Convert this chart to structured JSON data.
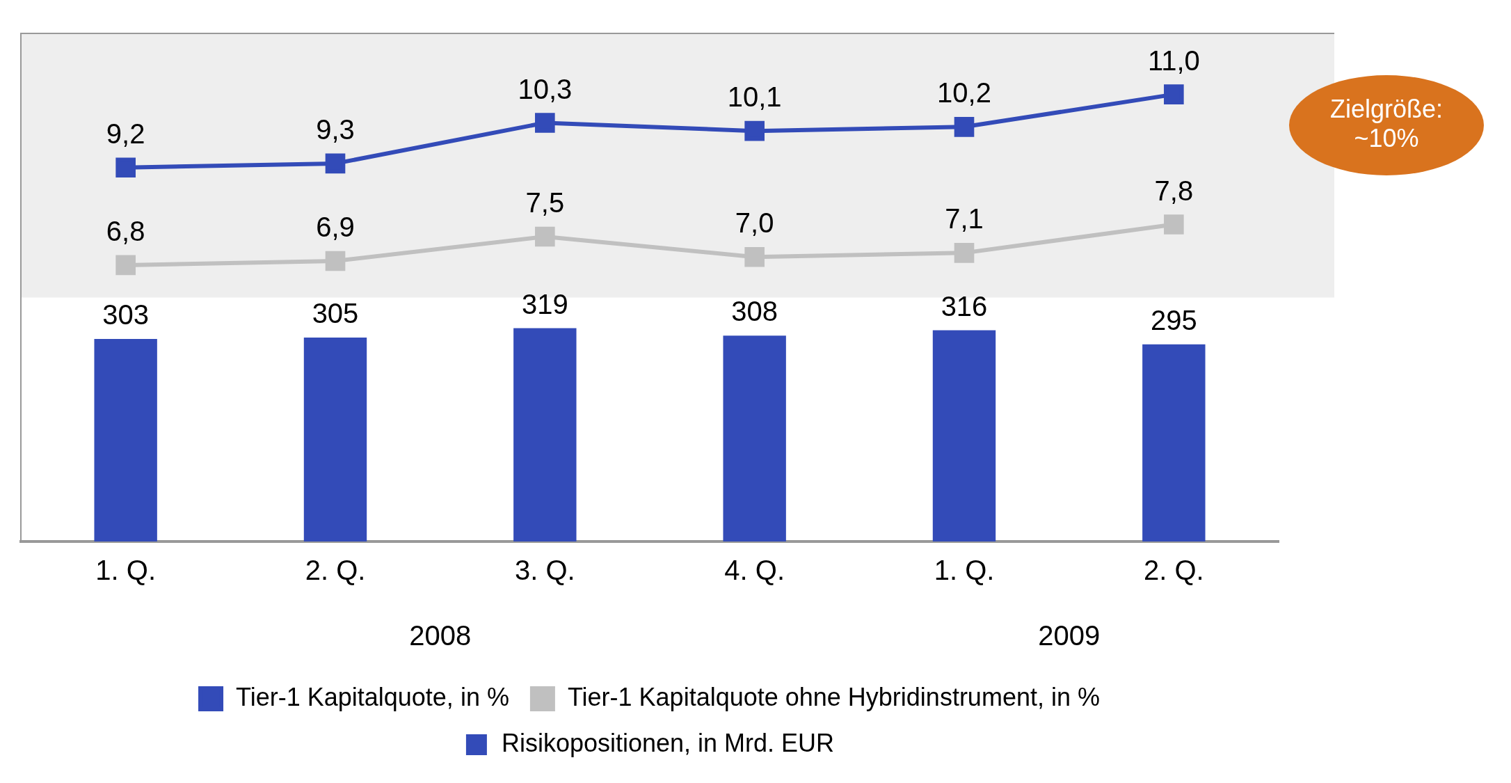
{
  "chart_data": {
    "type": "bar",
    "categories": [
      "1. Q.",
      "2. Q.",
      "3. Q.",
      "4. Q.",
      "1. Q.",
      "2. Q."
    ],
    "series": [
      {
        "name": "Risikopositionen, in Mrd. EUR",
        "color": "#334bb8",
        "values": [
          303,
          305,
          319,
          308,
          316,
          295
        ],
        "value_labels": [
          "303",
          "305",
          "319",
          "308",
          "316",
          "295"
        ]
      },
      {
        "name": "Tier-1 Kapitalquote, in %",
        "type": "line",
        "axis": "y2",
        "color": "#334bb8",
        "values": [
          9.2,
          9.3,
          10.3,
          10.1,
          10.2,
          11.0
        ],
        "value_labels": [
          "9,2",
          "9,3",
          "10,3",
          "10,1",
          "10,2",
          "11,0"
        ]
      },
      {
        "name": "Tier-1 Kapitalquote ohne Hybridinstrument, in %",
        "type": "line",
        "axis": "y2",
        "color": "#c0c0c0",
        "values": [
          6.8,
          6.9,
          7.5,
          7.0,
          7.1,
          7.8
        ],
        "value_labels": [
          "6,8",
          "6,9",
          "7,5",
          "7,0",
          "7,1",
          "7,8"
        ]
      }
    ],
    "bands": [
      {
        "axis": "y2",
        "from": 6.0,
        "to": 12.5,
        "color": "#eeeeee"
      }
    ],
    "ylim": [
      0,
      760
    ],
    "y2lim": [
      0,
      12.5
    ],
    "tick_labels": "x",
    "marker": "square",
    "legend": "bottom",
    "annotations": [
      "Zielgröße: ~10%",
      "2008",
      "2009"
    ]
  }
}
